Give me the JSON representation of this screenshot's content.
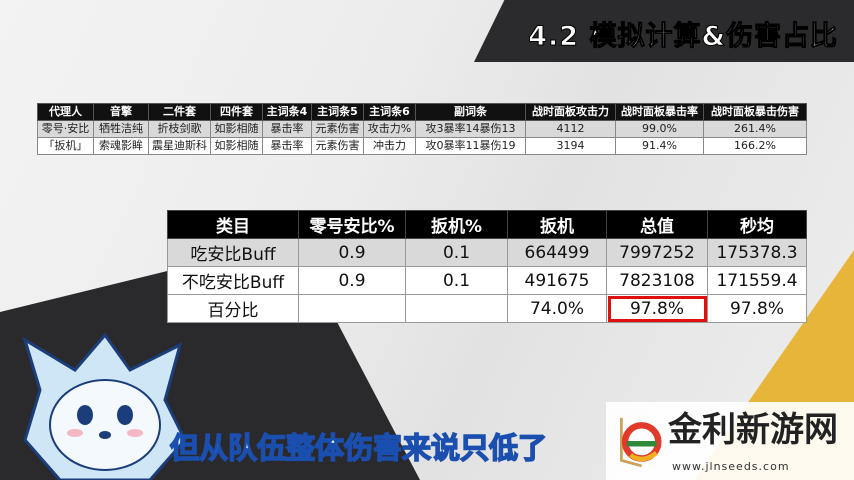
{
  "title": "4.2 模拟计算&伤害占比",
  "table1": {
    "headers": [
      "代理人",
      "音擎",
      "二件套",
      "四件套",
      "主词条4",
      "主词条5",
      "主词条6",
      "副词条",
      "战时面板攻击力",
      "战时面板暴击率",
      "战时面板暴击伤害"
    ],
    "rows": [
      [
        "零号·安比",
        "牺牲洁纯",
        "折枝剑歌",
        "如影相随",
        "暴击率",
        "元素伤害",
        "攻击力%",
        "攻3暴率14暴伤13",
        "4112",
        "99.0%",
        "261.4%"
      ],
      [
        "「扳机」",
        "索魂影眸",
        "震星迪斯科",
        "如影相随",
        "暴击率",
        "元素伤害",
        "冲击力",
        "攻0暴率11暴伤19",
        "3194",
        "91.4%",
        "166.2%"
      ]
    ]
  },
  "table2": {
    "headers": [
      "类目",
      "零号安比%",
      "扳机%",
      "扳机",
      "总值",
      "秒均"
    ],
    "rows": [
      [
        "吃安比Buff",
        "0.9",
        "0.1",
        "664499",
        "7997252",
        "175378.3"
      ],
      [
        "不吃安比Buff",
        "0.9",
        "0.1",
        "491675",
        "7823108",
        "171559.4"
      ],
      [
        "百分比",
        "",
        "",
        "74.0%",
        "97.8%",
        "97.8%"
      ]
    ],
    "highlight_color": "#e01010"
  },
  "subtitle": "但从队伍整体伤害来说只低了",
  "watermark": {
    "name": "金利新游网",
    "url": "www.jlnseeds.com"
  }
}
